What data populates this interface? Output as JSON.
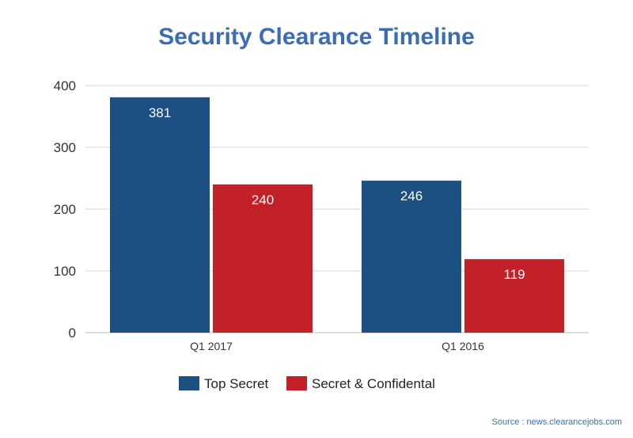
{
  "chart_data": {
    "type": "bar",
    "title": "Security Clearance Timeline",
    "categories": [
      "Q1 2017",
      "Q1 2016"
    ],
    "series": [
      {
        "name": "Top Secret",
        "values": [
          381,
          246
        ],
        "color": "#1c4f82"
      },
      {
        "name": "Secret & Confidental",
        "values": [
          240,
          119
        ],
        "color": "#c12127"
      }
    ],
    "ylim": [
      0,
      400
    ],
    "yticks": [
      0,
      100,
      200,
      300,
      400
    ],
    "grid": true,
    "legend": "bottom-center",
    "xlabel": "",
    "ylabel": ""
  },
  "source": "Source : news.clearancejobs.com"
}
